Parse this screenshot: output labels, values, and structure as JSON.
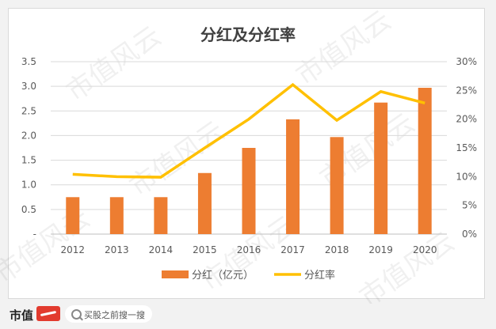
{
  "chart_data": {
    "type": "bar+line",
    "title": "分红及分红率",
    "categories": [
      "2012",
      "2013",
      "2014",
      "2015",
      "2016",
      "2017",
      "2018",
      "2019",
      "2020"
    ],
    "series": [
      {
        "name": "分红（亿元）",
        "type": "bar",
        "axis": "left",
        "color": "#ed7d31",
        "values": [
          0.75,
          0.75,
          0.75,
          1.24,
          1.75,
          2.33,
          1.97,
          2.67,
          2.97
        ]
      },
      {
        "name": "分红率",
        "type": "line",
        "axis": "right",
        "color": "#ffc000",
        "values": [
          10.4,
          10.0,
          9.9,
          15.0,
          20.0,
          26.0,
          19.8,
          24.8,
          22.8
        ]
      }
    ],
    "left_axis": {
      "ylim": [
        0,
        3.5
      ],
      "ticks": [
        "-",
        "0.5",
        "1.0",
        "1.5",
        "2.0",
        "2.5",
        "3.0",
        "3.5"
      ]
    },
    "right_axis": {
      "ylim": [
        0,
        30
      ],
      "ticks": [
        "0%",
        "5%",
        "10%",
        "15%",
        "20%",
        "25%",
        "30%"
      ]
    },
    "grid": true,
    "legend": "bottom"
  },
  "watermark": "市值风云",
  "footer": {
    "brand": "市值",
    "search_text": "买股之前搜一搜"
  }
}
